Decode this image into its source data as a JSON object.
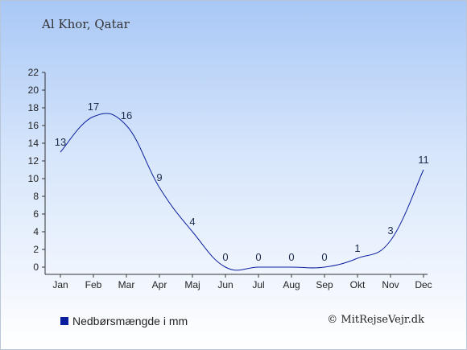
{
  "header": {
    "location": "Al Khor, Qatar"
  },
  "legend": {
    "label": "Nedbørsmængde i mm"
  },
  "credit": {
    "text": "© MitRejseVejr.dk"
  },
  "colors": {
    "series_line": "#0b1f9e",
    "axis": "#333333"
  },
  "chart_data": {
    "type": "line",
    "categories": [
      "Jan",
      "Feb",
      "Mar",
      "Apr",
      "Maj",
      "Jun",
      "Jul",
      "Aug",
      "Sep",
      "Okt",
      "Nov",
      "Dec"
    ],
    "series": [
      {
        "values": [
          13,
          17,
          16,
          9,
          4,
          0,
          0,
          0,
          0,
          1,
          3,
          11
        ]
      }
    ],
    "yticks": [
      0,
      2,
      4,
      6,
      8,
      10,
      12,
      14,
      16,
      18,
      20,
      22
    ],
    "ylim": [
      0,
      22
    ],
    "grid": false,
    "legend_position": "bottom-left"
  }
}
